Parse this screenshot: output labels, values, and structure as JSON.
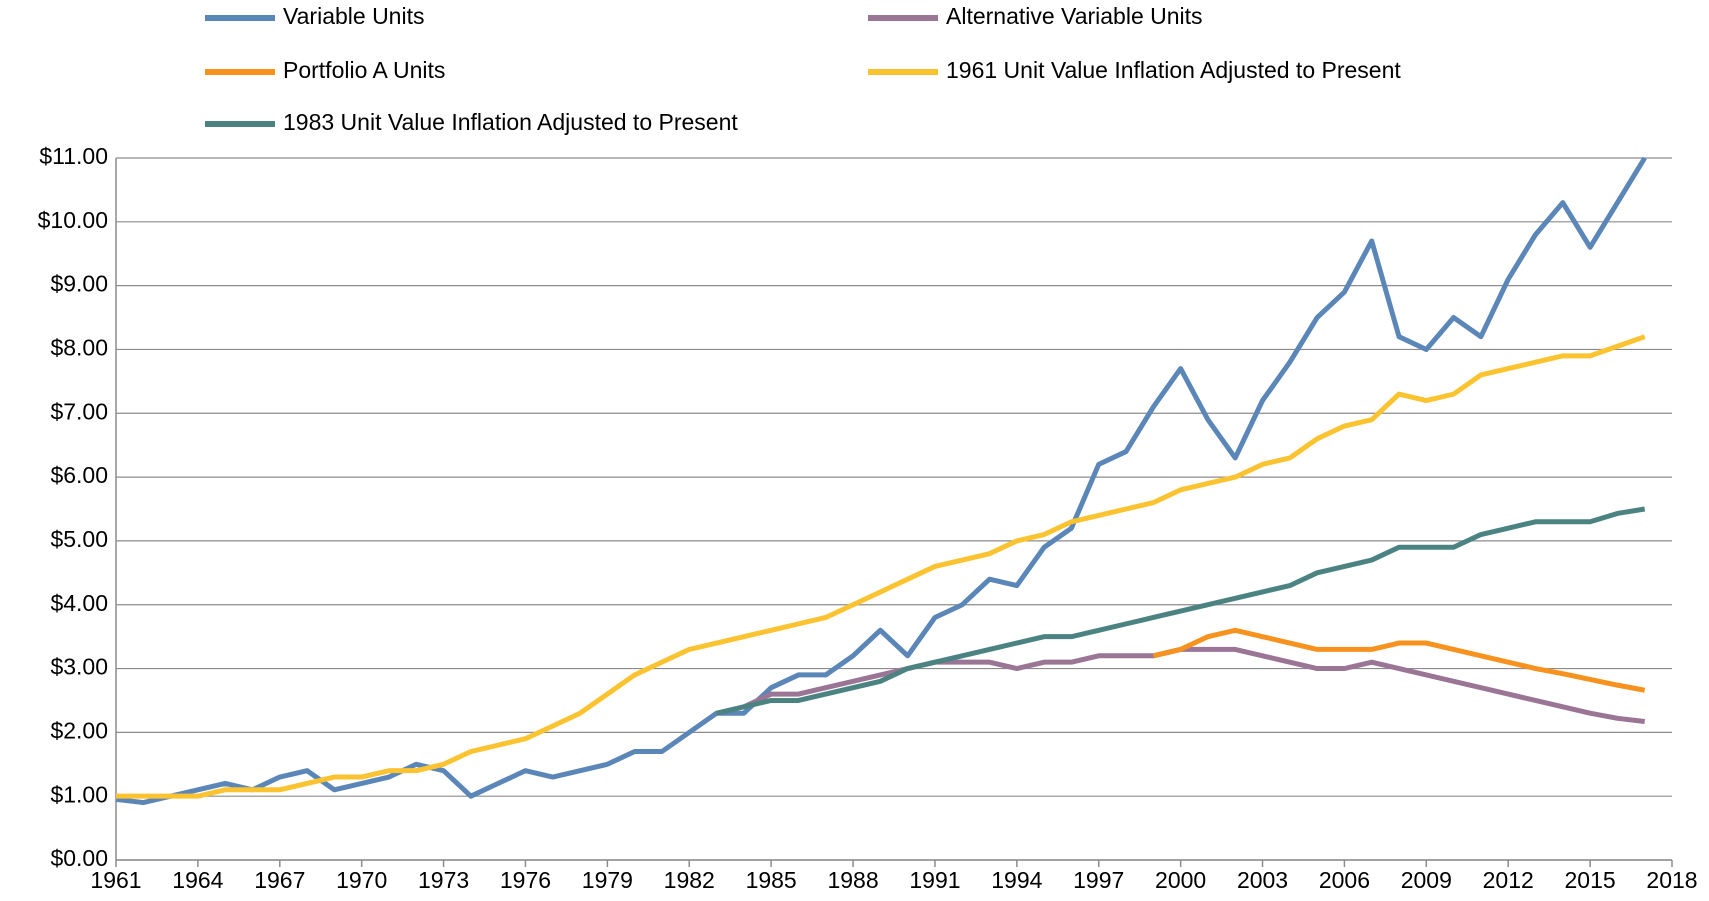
{
  "chart_data": {
    "type": "line",
    "x": [
      1961,
      1962,
      1963,
      1964,
      1965,
      1966,
      1967,
      1968,
      1969,
      1970,
      1971,
      1972,
      1973,
      1974,
      1975,
      1976,
      1977,
      1978,
      1979,
      1980,
      1981,
      1982,
      1983,
      1984,
      1985,
      1986,
      1987,
      1988,
      1989,
      1990,
      1991,
      1992,
      1993,
      1994,
      1995,
      1996,
      1997,
      1998,
      1999,
      2000,
      2001,
      2002,
      2003,
      2004,
      2005,
      2006,
      2007,
      2008,
      2009,
      2010,
      2011,
      2012,
      2013,
      2014,
      2015,
      2016,
      2017
    ],
    "series": [
      {
        "name": "Variable Units",
        "color": "#5b86b8",
        "values": [
          0.95,
          0.9,
          1.0,
          1.1,
          1.2,
          1.1,
          1.3,
          1.4,
          1.1,
          1.2,
          1.3,
          1.5,
          1.4,
          1.0,
          1.2,
          1.4,
          1.3,
          1.4,
          1.5,
          1.7,
          1.7,
          2.0,
          2.3,
          2.3,
          2.7,
          2.9,
          2.9,
          3.2,
          3.6,
          3.2,
          3.8,
          4.0,
          4.4,
          4.3,
          4.9,
          5.2,
          6.2,
          6.4,
          7.1,
          7.7,
          6.9,
          6.3,
          7.2,
          7.8,
          8.5,
          8.9,
          9.7,
          8.2,
          8.0,
          8.5,
          8.2,
          9.1,
          9.8,
          10.3,
          9.6,
          10.3,
          11.0
        ]
      },
      {
        "name": "Alternative Variable Units",
        "color": "#9a7596",
        "values": [
          null,
          null,
          null,
          null,
          null,
          null,
          null,
          null,
          null,
          null,
          null,
          null,
          null,
          null,
          null,
          null,
          null,
          null,
          null,
          null,
          null,
          null,
          null,
          2.4,
          2.6,
          2.6,
          2.7,
          2.8,
          2.9,
          3.0,
          3.1,
          3.1,
          3.1,
          3.0,
          3.1,
          3.1,
          3.2,
          3.2,
          3.2,
          3.3,
          3.3,
          3.3,
          3.2,
          3.1,
          3.0,
          3.0,
          3.1,
          3.0,
          2.9,
          2.8,
          2.7,
          2.6,
          2.5,
          2.4,
          2.3,
          2.22,
          2.17
        ]
      },
      {
        "name": "Portfolio A Units",
        "color": "#f7921e",
        "values": [
          null,
          null,
          null,
          null,
          null,
          null,
          null,
          null,
          null,
          null,
          null,
          null,
          null,
          null,
          null,
          null,
          null,
          null,
          null,
          null,
          null,
          null,
          null,
          null,
          null,
          null,
          null,
          null,
          null,
          null,
          null,
          null,
          null,
          null,
          null,
          null,
          null,
          null,
          3.2,
          3.3,
          3.5,
          3.6,
          3.5,
          3.4,
          3.3,
          3.3,
          3.3,
          3.4,
          3.4,
          3.3,
          3.2,
          3.1,
          3.0,
          2.92,
          2.83,
          2.74,
          2.66
        ]
      },
      {
        "name": "1961 Unit Value Inflation Adjusted to Present",
        "color": "#fcc331",
        "values": [
          1.0,
          1.0,
          1.0,
          1.0,
          1.1,
          1.1,
          1.1,
          1.2,
          1.3,
          1.3,
          1.4,
          1.4,
          1.5,
          1.7,
          1.8,
          1.9,
          2.1,
          2.3,
          2.6,
          2.9,
          3.1,
          3.3,
          3.4,
          3.5,
          3.6,
          3.7,
          3.8,
          4.0,
          4.2,
          4.4,
          4.6,
          4.7,
          4.8,
          5.0,
          5.1,
          5.3,
          5.4,
          5.5,
          5.6,
          5.8,
          5.9,
          6.0,
          6.2,
          6.3,
          6.6,
          6.8,
          6.9,
          7.3,
          7.2,
          7.3,
          7.6,
          7.7,
          7.8,
          7.9,
          7.9,
          8.05,
          8.2
        ]
      },
      {
        "name": "1983 Unit Value Inflation Adjusted to Present",
        "color": "#4b8382",
        "values": [
          null,
          null,
          null,
          null,
          null,
          null,
          null,
          null,
          null,
          null,
          null,
          null,
          null,
          null,
          null,
          null,
          null,
          null,
          null,
          null,
          null,
          null,
          2.3,
          2.4,
          2.5,
          2.5,
          2.6,
          2.7,
          2.8,
          3.0,
          3.1,
          3.2,
          3.3,
          3.4,
          3.5,
          3.5,
          3.6,
          3.7,
          3.8,
          3.9,
          4.0,
          4.1,
          4.2,
          4.3,
          4.5,
          4.6,
          4.7,
          4.9,
          4.9,
          4.9,
          5.1,
          5.2,
          5.3,
          5.3,
          5.3,
          5.43,
          5.5
        ]
      }
    ],
    "xlim": [
      1961,
      2018
    ],
    "xticks": [
      1961,
      1964,
      1967,
      1970,
      1973,
      1976,
      1979,
      1982,
      1985,
      1988,
      1991,
      1994,
      1997,
      2000,
      2003,
      2006,
      2009,
      2012,
      2015,
      2018
    ],
    "ylim": [
      0,
      11
    ],
    "yticks": [
      {
        "value": 0,
        "label": "$0.00"
      },
      {
        "value": 1,
        "label": "$1.00"
      },
      {
        "value": 2,
        "label": "$2.00"
      },
      {
        "value": 3,
        "label": "$3.00"
      },
      {
        "value": 4,
        "label": "$4.00"
      },
      {
        "value": 5,
        "label": "$5.00"
      },
      {
        "value": 6,
        "label": "$6.00"
      },
      {
        "value": 7,
        "label": "$7.00"
      },
      {
        "value": 8,
        "label": "$8.00"
      },
      {
        "value": 9,
        "label": "$9.00"
      },
      {
        "value": 10,
        "label": "$10.00"
      },
      {
        "value": 11,
        "label": "$11.00"
      }
    ],
    "grid": true,
    "legend": "top"
  }
}
